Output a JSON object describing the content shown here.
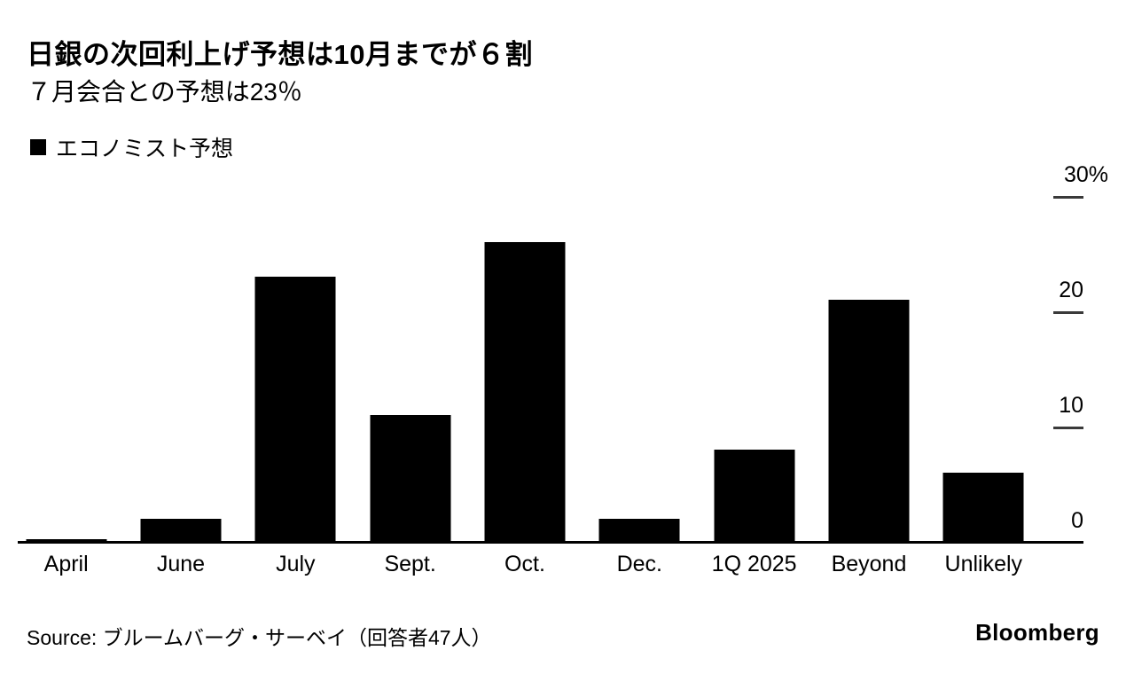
{
  "title": "日銀の次回利上げ予想は10月までが６割",
  "subtitle": "７月会合との予想は23％",
  "legend": {
    "label": "エコノミスト予想",
    "swatch_color": "#000000"
  },
  "chart_data": {
    "type": "bar",
    "title": "日銀の次回利上げ予想は10月までが６割",
    "subtitle": "７月会合との予想は23％",
    "series_name": "エコノミスト予想",
    "categories": [
      "April",
      "June",
      "July",
      "Sept.",
      "Oct.",
      "Dec.",
      "1Q 2025",
      "Beyond",
      "Unlikely"
    ],
    "values": [
      0,
      2,
      23,
      11,
      26,
      2,
      8,
      21,
      6
    ],
    "unit": "%",
    "xlabel": "",
    "ylabel": "",
    "ylim": [
      0,
      30
    ],
    "yticks": [
      0,
      10,
      20,
      30
    ],
    "ytick_labels": [
      "0",
      "10",
      "20",
      "30%"
    ],
    "bar_color": "#000000",
    "background_color": "#ffffff",
    "grid": false,
    "y_axis_position": "right",
    "legend_position": "top-left"
  },
  "footer": {
    "source": "Source: ブルームバーグ・サーベイ（回答者47人）",
    "brand": "Bloomberg"
  }
}
